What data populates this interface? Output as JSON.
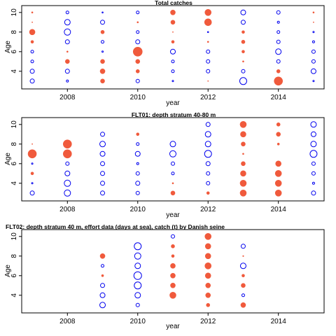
{
  "figure": {
    "title": "Total catches"
  },
  "colors": {
    "positive": "#f05a3c",
    "negative": "#0000ee",
    "axis": "#000000"
  },
  "chart_data": [
    {
      "type": "scatter",
      "title": "Total catches",
      "xlabel": "year",
      "ylabel": "Age",
      "xlim": [
        2006.7,
        2015.3
      ],
      "ylim": [
        2.2,
        10.7
      ],
      "xticks": [
        2008,
        2010,
        2012,
        2014
      ],
      "yticks": [
        4,
        6,
        8,
        10
      ],
      "note": "bubble size = |residual|; red filled = positive, blue open = negative",
      "points": [
        {
          "x": 2007,
          "y": 3,
          "v": -3
        },
        {
          "x": 2007,
          "y": 4,
          "v": -3
        },
        {
          "x": 2007,
          "y": 5,
          "v": -2
        },
        {
          "x": 2007,
          "y": 6,
          "v": -2
        },
        {
          "x": 2007,
          "y": 7,
          "v": 2
        },
        {
          "x": 2007,
          "y": 8,
          "v": 4
        },
        {
          "x": 2007,
          "y": 9,
          "v": 0.5
        },
        {
          "x": 2007,
          "y": 10,
          "v": 1
        },
        {
          "x": 2008,
          "y": 3,
          "v": -1.5
        },
        {
          "x": 2008,
          "y": 4,
          "v": -3
        },
        {
          "x": 2008,
          "y": 5,
          "v": 3
        },
        {
          "x": 2008,
          "y": 6,
          "v": 1
        },
        {
          "x": 2008,
          "y": 7,
          "v": -3
        },
        {
          "x": 2008,
          "y": 8,
          "v": -4.5
        },
        {
          "x": 2008,
          "y": 9,
          "v": -4
        },
        {
          "x": 2008,
          "y": 10,
          "v": -2
        },
        {
          "x": 2009,
          "y": 3,
          "v": 3
        },
        {
          "x": 2009,
          "y": 4,
          "v": 3.5
        },
        {
          "x": 2009,
          "y": 5,
          "v": 3
        },
        {
          "x": 2009,
          "y": 6,
          "v": -1
        },
        {
          "x": 2009,
          "y": 7,
          "v": -2
        },
        {
          "x": 2009,
          "y": 8,
          "v": 2.5
        },
        {
          "x": 2009,
          "y": 9,
          "v": -3
        },
        {
          "x": 2009,
          "y": 10,
          "v": -0.8
        },
        {
          "x": 2010,
          "y": 3,
          "v": -2.5
        },
        {
          "x": 2010,
          "y": 4,
          "v": 2.5
        },
        {
          "x": 2010,
          "y": 5,
          "v": 3
        },
        {
          "x": 2010,
          "y": 6,
          "v": 6.5
        },
        {
          "x": 2010,
          "y": 7,
          "v": -3
        },
        {
          "x": 2010,
          "y": 8,
          "v": -2
        },
        {
          "x": 2010,
          "y": 9,
          "v": 1
        },
        {
          "x": 2010,
          "y": 10,
          "v": -2
        },
        {
          "x": 2011,
          "y": 3,
          "v": -1
        },
        {
          "x": 2011,
          "y": 4,
          "v": -2
        },
        {
          "x": 2011,
          "y": 5,
          "v": -2
        },
        {
          "x": 2011,
          "y": 6,
          "v": -3.5
        },
        {
          "x": 2011,
          "y": 7,
          "v": 2
        },
        {
          "x": 2011,
          "y": 8,
          "v": 0.5
        },
        {
          "x": 2011,
          "y": 9,
          "v": 3
        },
        {
          "x": 2011,
          "y": 10,
          "v": 3.5
        },
        {
          "x": 2012,
          "y": 3,
          "v": 0.5
        },
        {
          "x": 2012,
          "y": 4,
          "v": -2.5
        },
        {
          "x": 2012,
          "y": 5,
          "v": -2.5
        },
        {
          "x": 2012,
          "y": 6,
          "v": -2.5
        },
        {
          "x": 2012,
          "y": 7,
          "v": 1
        },
        {
          "x": 2012,
          "y": 8,
          "v": -0.8
        },
        {
          "x": 2012,
          "y": 9,
          "v": 5
        },
        {
          "x": 2012,
          "y": 10,
          "v": 4.5
        },
        {
          "x": 2013,
          "y": 3,
          "v": -5
        },
        {
          "x": 2013,
          "y": 4,
          "v": -2.5
        },
        {
          "x": 2013,
          "y": 5,
          "v": 1
        },
        {
          "x": 2013,
          "y": 6,
          "v": 2
        },
        {
          "x": 2013,
          "y": 7,
          "v": 2.5
        },
        {
          "x": 2013,
          "y": 8,
          "v": 2
        },
        {
          "x": 2013,
          "y": 9,
          "v": -3
        },
        {
          "x": 2013,
          "y": 10,
          "v": -3.5
        },
        {
          "x": 2014,
          "y": 3,
          "v": 6
        },
        {
          "x": 2014,
          "y": 4,
          "v": 2.5
        },
        {
          "x": 2014,
          "y": 5,
          "v": -2.5
        },
        {
          "x": 2014,
          "y": 6,
          "v": -4
        },
        {
          "x": 2014,
          "y": 7,
          "v": -2.5
        },
        {
          "x": 2014,
          "y": 8,
          "v": -2
        },
        {
          "x": 2014,
          "y": 9,
          "v": -1.5
        },
        {
          "x": 2014,
          "y": 10,
          "v": -2.5
        },
        {
          "x": 2015,
          "y": 3,
          "v": -1
        },
        {
          "x": 2015,
          "y": 4,
          "v": -3.5
        },
        {
          "x": 2015,
          "y": 5,
          "v": -2.5
        },
        {
          "x": 2015,
          "y": 6,
          "v": -2.5
        },
        {
          "x": 2015,
          "y": 7,
          "v": -1.5
        },
        {
          "x": 2015,
          "y": 8,
          "v": -1
        },
        {
          "x": 2015,
          "y": 9,
          "v": 0.5
        },
        {
          "x": 2015,
          "y": 10,
          "v": 1
        }
      ]
    },
    {
      "type": "scatter",
      "title": "FLT01:  depth stratum 40-80 m",
      "xlabel": "year",
      "ylabel": "Age",
      "xlim": [
        2006.7,
        2015.3
      ],
      "ylim": [
        2.2,
        10.7
      ],
      "xticks": [
        2008,
        2010,
        2012,
        2014
      ],
      "yticks": [
        4,
        6,
        8,
        10
      ],
      "points": [
        {
          "x": 2007,
          "y": 3,
          "v": -3
        },
        {
          "x": 2007,
          "y": 4,
          "v": -1
        },
        {
          "x": 2007,
          "y": 5,
          "v": 2
        },
        {
          "x": 2007,
          "y": 6,
          "v": -1
        },
        {
          "x": 2007,
          "y": 7,
          "v": 6
        },
        {
          "x": 2007,
          "y": 8,
          "v": 0.5
        },
        {
          "x": 2008,
          "y": 3,
          "v": -4.5
        },
        {
          "x": 2008,
          "y": 4,
          "v": -4.5
        },
        {
          "x": 2008,
          "y": 5,
          "v": -3.5
        },
        {
          "x": 2008,
          "y": 6,
          "v": -2.5
        },
        {
          "x": 2008,
          "y": 7,
          "v": 6
        },
        {
          "x": 2008,
          "y": 8,
          "v": 6
        },
        {
          "x": 2009,
          "y": 3,
          "v": -3
        },
        {
          "x": 2009,
          "y": 4,
          "v": -3
        },
        {
          "x": 2009,
          "y": 5,
          "v": -3
        },
        {
          "x": 2009,
          "y": 6,
          "v": -3
        },
        {
          "x": 2009,
          "y": 7,
          "v": -3.5
        },
        {
          "x": 2009,
          "y": 8,
          "v": -4
        },
        {
          "x": 2009,
          "y": 9,
          "v": -3
        },
        {
          "x": 2010,
          "y": 3,
          "v": -2.5
        },
        {
          "x": 2010,
          "y": 4,
          "v": -3
        },
        {
          "x": 2010,
          "y": 5,
          "v": -2.5
        },
        {
          "x": 2010,
          "y": 6,
          "v": -1.5
        },
        {
          "x": 2010,
          "y": 7,
          "v": -3.5
        },
        {
          "x": 2010,
          "y": 8,
          "v": -2
        },
        {
          "x": 2010,
          "y": 9,
          "v": 2
        },
        {
          "x": 2011,
          "y": 3,
          "v": 3
        },
        {
          "x": 2011,
          "y": 4,
          "v": 1
        },
        {
          "x": 2011,
          "y": 5,
          "v": -2
        },
        {
          "x": 2011,
          "y": 6,
          "v": -2.5
        },
        {
          "x": 2011,
          "y": 7,
          "v": -4.5
        },
        {
          "x": 2011,
          "y": 8,
          "v": -4
        },
        {
          "x": 2012,
          "y": 3,
          "v": 2
        },
        {
          "x": 2012,
          "y": 4,
          "v": -2.5
        },
        {
          "x": 2012,
          "y": 5,
          "v": -2.5
        },
        {
          "x": 2012,
          "y": 6,
          "v": -3
        },
        {
          "x": 2012,
          "y": 7,
          "v": -5
        },
        {
          "x": 2012,
          "y": 8,
          "v": -4
        },
        {
          "x": 2012,
          "y": 9,
          "v": -4
        },
        {
          "x": 2012,
          "y": 10,
          "v": -3
        },
        {
          "x": 2013,
          "y": 3,
          "v": 4.5
        },
        {
          "x": 2013,
          "y": 4,
          "v": 4.5
        },
        {
          "x": 2013,
          "y": 5,
          "v": 4
        },
        {
          "x": 2013,
          "y": 6,
          "v": 3
        },
        {
          "x": 2013,
          "y": 7,
          "v": 1
        },
        {
          "x": 2013,
          "y": 8,
          "v": 3
        },
        {
          "x": 2013,
          "y": 9,
          "v": 4
        },
        {
          "x": 2013,
          "y": 10,
          "v": 4.5
        },
        {
          "x": 2014,
          "y": 3,
          "v": 4.5
        },
        {
          "x": 2014,
          "y": 4,
          "v": 4.5
        },
        {
          "x": 2014,
          "y": 5,
          "v": 4.5
        },
        {
          "x": 2014,
          "y": 6,
          "v": 4
        },
        {
          "x": 2014,
          "y": 8,
          "v": 1.5
        },
        {
          "x": 2014,
          "y": 9,
          "v": 3
        },
        {
          "x": 2014,
          "y": 10,
          "v": 2.5
        },
        {
          "x": 2015,
          "y": 3,
          "v": -3
        },
        {
          "x": 2015,
          "y": 4,
          "v": -1.5
        },
        {
          "x": 2015,
          "y": 5,
          "v": -2.5
        },
        {
          "x": 2015,
          "y": 6,
          "v": -2.5
        },
        {
          "x": 2015,
          "y": 7,
          "v": -5
        },
        {
          "x": 2015,
          "y": 8,
          "v": -4
        },
        {
          "x": 2015,
          "y": 9,
          "v": -3.5
        },
        {
          "x": 2015,
          "y": 10,
          "v": -4
        }
      ]
    },
    {
      "type": "scatter",
      "title": "FLT02:      depth       stratum     40 m, effort data (days at sea), catch (t) by Danish seine",
      "xlabel": "year",
      "ylabel": "Age",
      "xlim": [
        2006.7,
        2015.3
      ],
      "ylim": [
        2.2,
        10.7
      ],
      "xticks": [
        2008,
        2010,
        2012,
        2014
      ],
      "yticks": [
        4,
        6,
        8,
        10
      ],
      "points": [
        {
          "x": 2009,
          "y": 3,
          "v": -4
        },
        {
          "x": 2009,
          "y": 4,
          "v": -3.5
        },
        {
          "x": 2009,
          "y": 5,
          "v": -3
        },
        {
          "x": 2009,
          "y": 6,
          "v": 1.5
        },
        {
          "x": 2009,
          "y": 7,
          "v": -2
        },
        {
          "x": 2009,
          "y": 8,
          "v": 3.5
        },
        {
          "x": 2010,
          "y": 3,
          "v": -2.5
        },
        {
          "x": 2010,
          "y": 4,
          "v": -4
        },
        {
          "x": 2010,
          "y": 5,
          "v": -5
        },
        {
          "x": 2010,
          "y": 6,
          "v": -5.5
        },
        {
          "x": 2010,
          "y": 7,
          "v": -4
        },
        {
          "x": 2010,
          "y": 8,
          "v": -4.5
        },
        {
          "x": 2010,
          "y": 9,
          "v": -5
        },
        {
          "x": 2011,
          "y": 4,
          "v": 4.5
        },
        {
          "x": 2011,
          "y": 5,
          "v": 3.5
        },
        {
          "x": 2011,
          "y": 6,
          "v": 3.5
        },
        {
          "x": 2011,
          "y": 7,
          "v": 3.5
        },
        {
          "x": 2011,
          "y": 8,
          "v": 2
        },
        {
          "x": 2011,
          "y": 9,
          "v": 2.5
        },
        {
          "x": 2011,
          "y": 10,
          "v": -2.5
        },
        {
          "x": 2012,
          "y": 3,
          "v": 2.5
        },
        {
          "x": 2012,
          "y": 4,
          "v": 3.5
        },
        {
          "x": 2012,
          "y": 5,
          "v": 3.5
        },
        {
          "x": 2012,
          "y": 6,
          "v": 4
        },
        {
          "x": 2012,
          "y": 7,
          "v": 4.5
        },
        {
          "x": 2012,
          "y": 8,
          "v": 4
        },
        {
          "x": 2012,
          "y": 9,
          "v": 4
        },
        {
          "x": 2012,
          "y": 10,
          "v": 4.5
        },
        {
          "x": 2013,
          "y": 3,
          "v": 3.5
        },
        {
          "x": 2013,
          "y": 4,
          "v": -2
        },
        {
          "x": 2013,
          "y": 5,
          "v": 3
        },
        {
          "x": 2013,
          "y": 6,
          "v": 2
        },
        {
          "x": 2013,
          "y": 7,
          "v": -4
        },
        {
          "x": 2013,
          "y": 8,
          "v": 0.8
        },
        {
          "x": 2013,
          "y": 9,
          "v": -3
        }
      ]
    }
  ]
}
